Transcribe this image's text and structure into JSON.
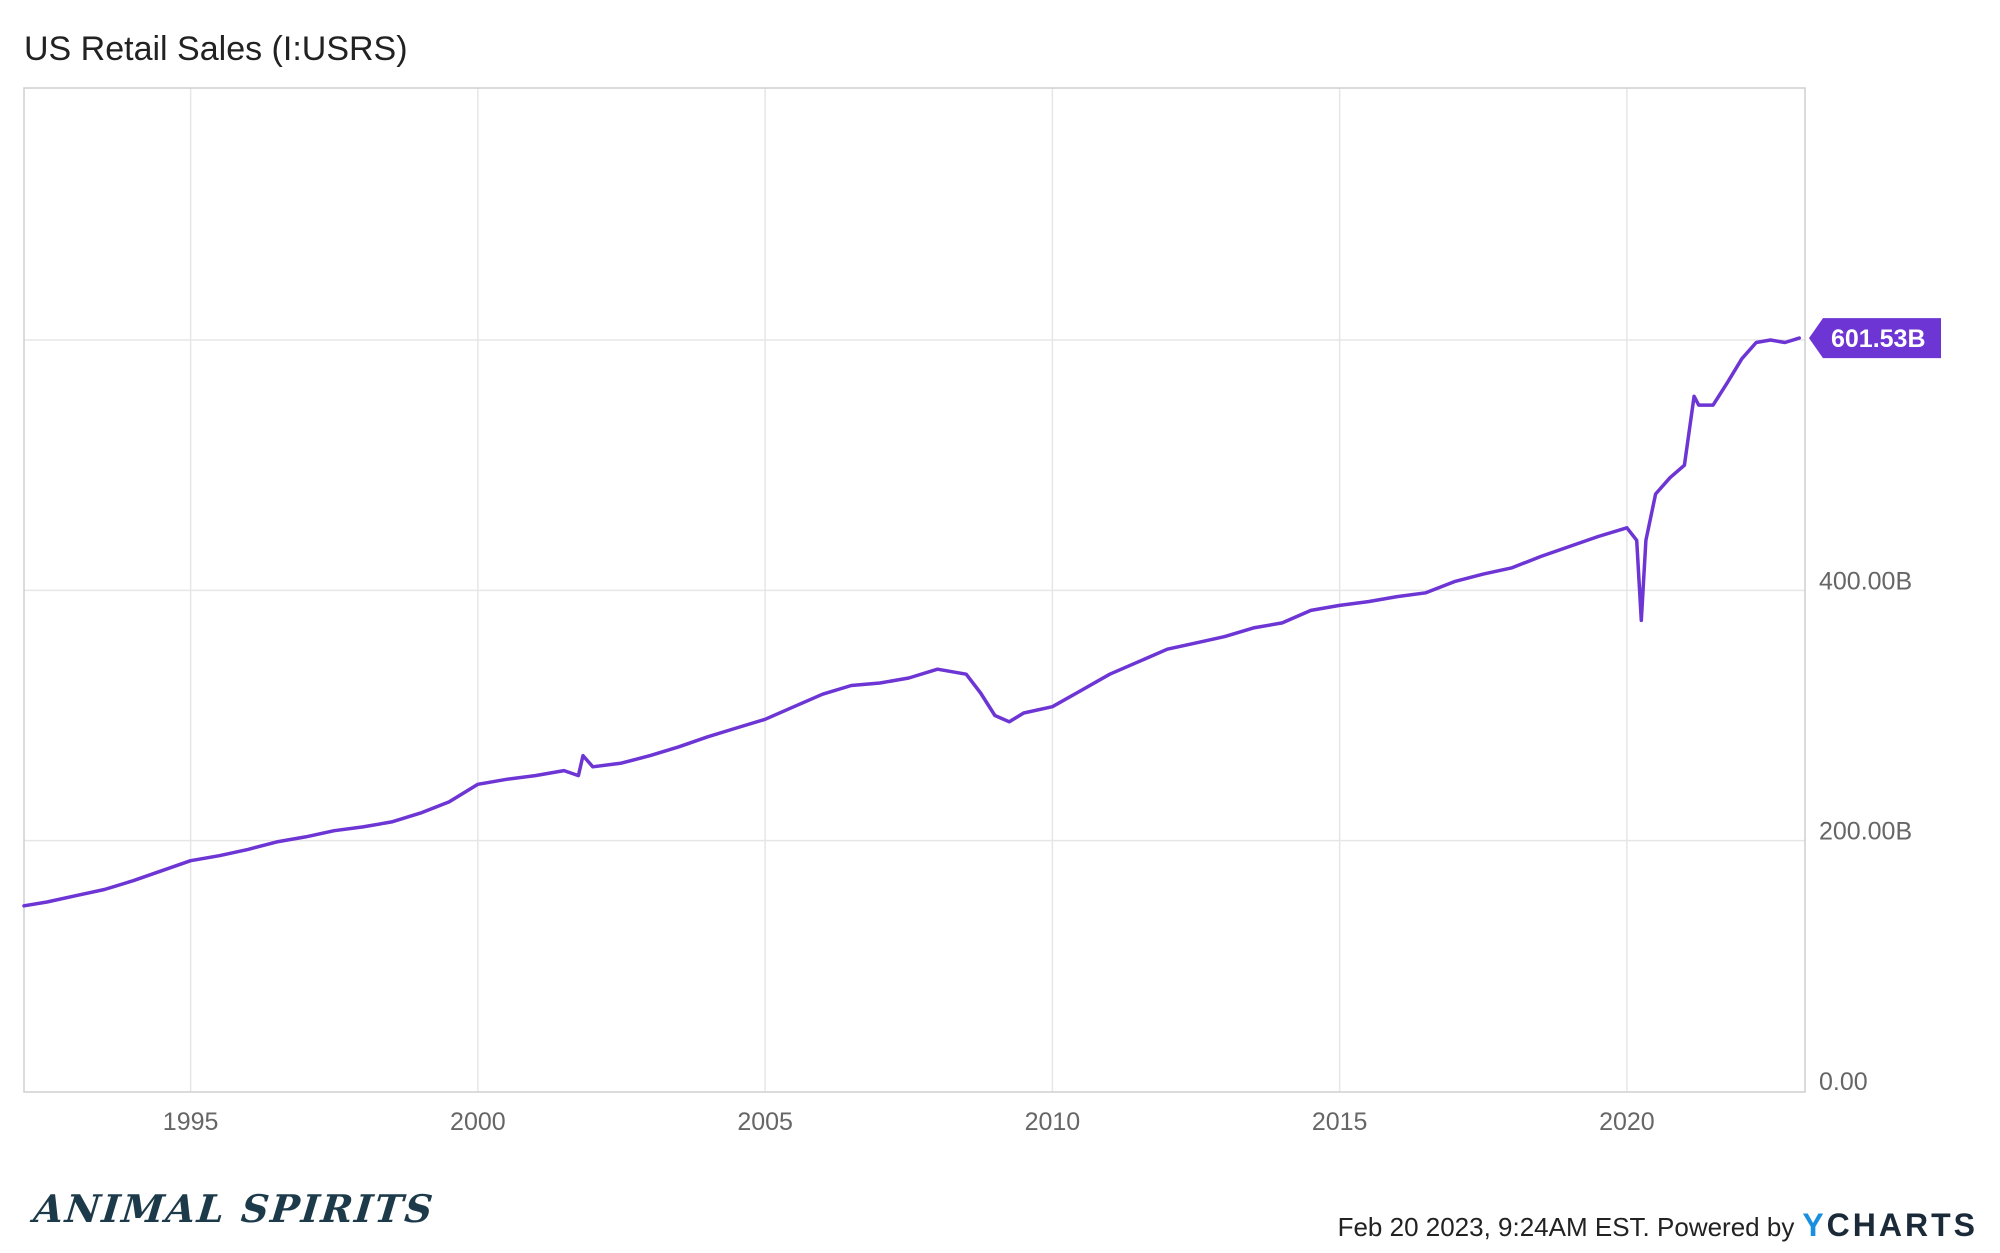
{
  "header": {
    "title": "US Retail Sales (I:USRS)"
  },
  "footer": {
    "timestamp": "Feb 20 2023, 9:24AM EST.",
    "powered_by": "Powered by",
    "logo_y": "Y",
    "logo_rest": "CHARTS"
  },
  "brand": {
    "text": "ANIMAL SPIRITS"
  },
  "colors": {
    "line": "#6c35d4",
    "grid": "#e6e6e6",
    "badge": "#6c35d4"
  },
  "chart_data": {
    "type": "line",
    "title": "US Retail Sales (I:USRS)",
    "xlabel": "",
    "ylabel": "",
    "xlim": [
      1992.1,
      2023.1
    ],
    "ylim": [
      0,
      600
    ],
    "x_ticks": [
      1995,
      2000,
      2005,
      2010,
      2015,
      2020
    ],
    "x_tick_labels": [
      "1995",
      "2000",
      "2005",
      "2010",
      "2015",
      "2020"
    ],
    "y_ticks": [
      0,
      200,
      400
    ],
    "y_tick_labels": [
      "0.00",
      "200.00B",
      "400.00B"
    ],
    "grid": true,
    "last_value_label": "601.53B",
    "series": [
      {
        "x": [
          1992.1,
          1992.5,
          1993.0,
          1993.5,
          1994.0,
          1994.5,
          1995.0,
          1995.5,
          1996.0,
          1996.5,
          1997.0,
          1997.5,
          1998.0,
          1998.5,
          1999.0,
          1999.5,
          2000.0,
          2000.5,
          2001.0,
          2001.5,
          2001.75,
          2001.83,
          2002.0,
          2002.5,
          2003.0,
          2003.5,
          2004.0,
          2004.5,
          2005.0,
          2005.5,
          2006.0,
          2006.5,
          2007.0,
          2007.5,
          2008.0,
          2008.5,
          2008.75,
          2009.0,
          2009.25,
          2009.5,
          2010.0,
          2010.5,
          2011.0,
          2011.5,
          2012.0,
          2012.5,
          2013.0,
          2013.5,
          2014.0,
          2014.5,
          2015.0,
          2015.5,
          2016.0,
          2016.5,
          2017.0,
          2017.5,
          2018.0,
          2018.5,
          2019.0,
          2019.5,
          2020.0,
          2020.17,
          2020.25,
          2020.33,
          2020.5,
          2020.75,
          2021.0,
          2021.17,
          2021.25,
          2021.5,
          2021.75,
          2022.0,
          2022.25,
          2022.5,
          2022.75,
          2023.0
        ],
        "values": [
          148,
          151,
          156,
          161,
          168,
          176,
          184,
          188,
          193,
          199,
          203,
          208,
          211,
          215,
          222,
          231,
          245,
          249,
          252,
          256,
          252,
          268,
          259,
          262,
          268,
          275,
          283,
          290,
          297,
          307,
          317,
          324,
          326,
          330,
          337,
          333,
          318,
          300,
          295,
          302,
          307,
          320,
          333,
          343,
          353,
          358,
          363,
          370,
          374,
          384,
          388,
          391,
          395,
          398,
          407,
          413,
          418,
          427,
          435,
          443,
          450,
          440,
          376,
          440,
          477,
          490,
          500,
          555,
          548,
          548,
          566,
          585,
          598,
          600,
          598,
          601.53
        ]
      }
    ]
  }
}
